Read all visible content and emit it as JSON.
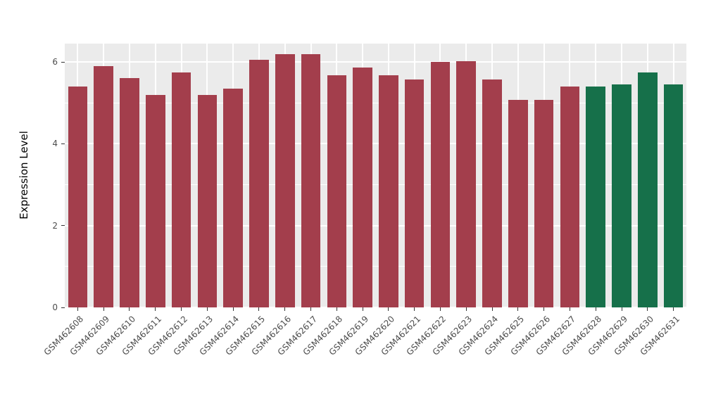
{
  "chart_data": {
    "type": "bar",
    "title": "",
    "xlabel": "",
    "ylabel": "Expression Level",
    "categories": [
      "GSM462608",
      "GSM462609",
      "GSM462610",
      "GSM462611",
      "GSM462612",
      "GSM462613",
      "GSM462614",
      "GSM462615",
      "GSM462616",
      "GSM462617",
      "GSM462618",
      "GSM462619",
      "GSM462620",
      "GSM462621",
      "GSM462622",
      "GSM462623",
      "GSM462624",
      "GSM462625",
      "GSM462626",
      "GSM462627",
      "GSM462628",
      "GSM462629",
      "GSM462630",
      "GSM462631"
    ],
    "values": [
      5.4,
      5.9,
      5.6,
      5.2,
      5.75,
      5.2,
      5.35,
      6.05,
      6.2,
      6.2,
      5.68,
      5.87,
      5.68,
      5.57,
      6.0,
      6.02,
      5.57,
      5.08,
      5.08,
      5.4,
      5.4,
      5.45,
      5.75,
      5.45
    ],
    "bar_colors": [
      "#A33E4C",
      "#A33E4C",
      "#A33E4C",
      "#A33E4C",
      "#A33E4C",
      "#A33E4C",
      "#A33E4C",
      "#A33E4C",
      "#A33E4C",
      "#A33E4C",
      "#A33E4C",
      "#A33E4C",
      "#A33E4C",
      "#A33E4C",
      "#A33E4C",
      "#A33E4C",
      "#A33E4C",
      "#A33E4C",
      "#A33E4C",
      "#A33E4C",
      "#16704A",
      "#16704A",
      "#16704A",
      "#16704A"
    ],
    "yticks": [
      0,
      2,
      4,
      6
    ],
    "yticks_minor": [
      1,
      3,
      5
    ],
    "ylim": [
      0,
      6.45
    ],
    "grid": true,
    "legend_position": "none",
    "panel_bg": "#EBEBEB",
    "grid_color": "#FFFFFF"
  }
}
